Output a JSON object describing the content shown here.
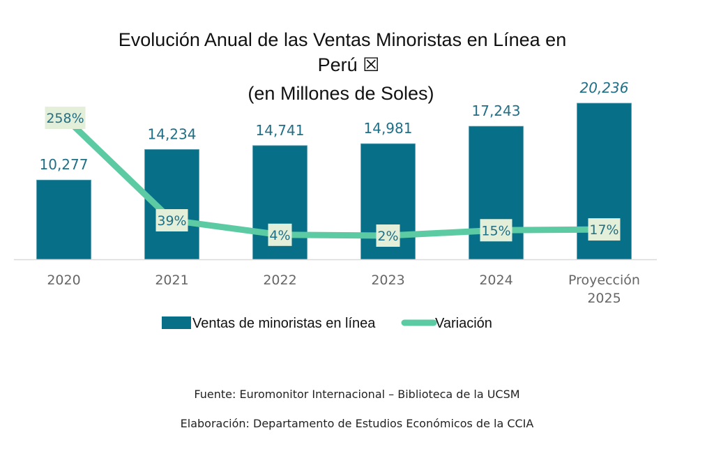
{
  "chart_data": {
    "type": "bar",
    "title_lines": [
      "Evolución Anual de las Ventas Minoristas en Línea en",
      "Perú ☒",
      "(en Millones de Soles)"
    ],
    "categories": [
      "2020",
      "2021",
      "2022",
      "2023",
      "2024",
      "Proyección 2025"
    ],
    "category_lines": [
      [
        "2020"
      ],
      [
        "2021"
      ],
      [
        "2022"
      ],
      [
        "2023"
      ],
      [
        "2024"
      ],
      [
        "Proyección",
        "2025"
      ]
    ],
    "series": [
      {
        "name": "Ventas de minoristas en línea",
        "kind": "bar",
        "color": "#076f87",
        "values": [
          10277,
          14234,
          14741,
          14981,
          17243,
          20236
        ],
        "labels": [
          "10,277",
          "14,234",
          "14,741",
          "14,981",
          "17,243",
          "20,236"
        ],
        "italic_last_label": true
      },
      {
        "name": "Variación",
        "kind": "line",
        "color": "#5ccba3",
        "values": [
          258,
          39,
          4,
          2,
          15,
          17
        ],
        "labels": [
          "258%",
          "39%",
          "4%",
          "2%",
          "15%",
          "17%"
        ],
        "label_box_color": "#e3efd9"
      }
    ],
    "xlabel": "",
    "ylabel": "",
    "ylim": [
      0,
      21000
    ],
    "grid": false,
    "legend_position": "bottom",
    "label_color": "#1f6f86",
    "tick_color": "#666666"
  },
  "footer": {
    "source": "Fuente: Euromonitor Internacional – Biblioteca de la UCSM",
    "credit": "Elaboración: Departamento de Estudios Económicos de la CCIA"
  }
}
